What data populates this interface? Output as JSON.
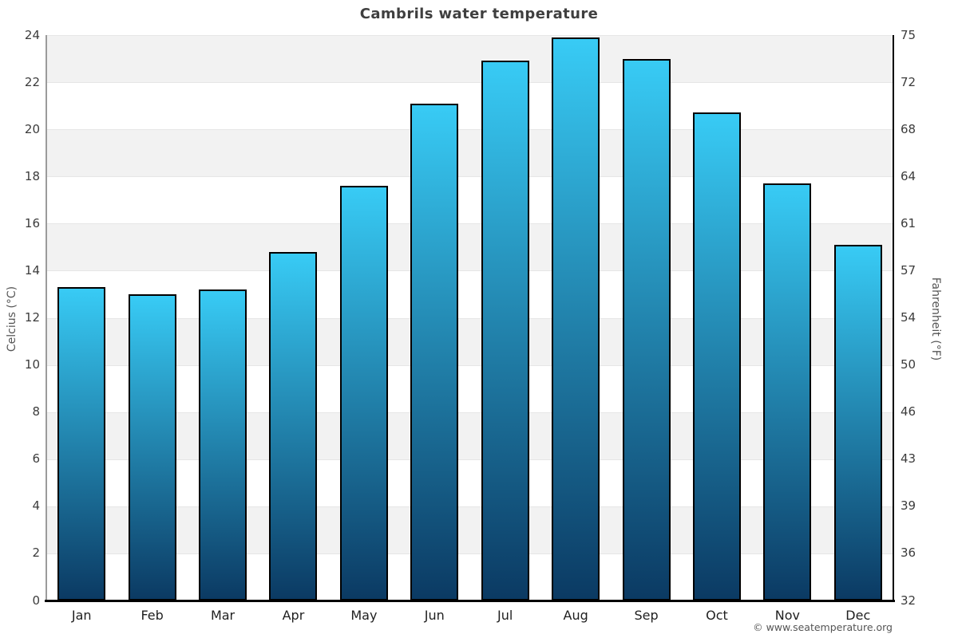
{
  "title": "Cambrils water temperature",
  "copyright": "© www.seatemperature.org",
  "chart_data": {
    "type": "bar",
    "title": "Cambrils water temperature",
    "categories": [
      "Jan",
      "Feb",
      "Mar",
      "Apr",
      "May",
      "Jun",
      "Jul",
      "Aug",
      "Sep",
      "Oct",
      "Nov",
      "Dec"
    ],
    "values_celsius": [
      13.3,
      13.0,
      13.2,
      14.8,
      17.6,
      21.1,
      22.9,
      23.9,
      23.0,
      20.7,
      17.7,
      15.1
    ],
    "xlabel": "",
    "ylabel_left": "Celcius (°C)",
    "ylabel_right": "Fahrenheit (°F)",
    "ylim_celsius": [
      0,
      24
    ],
    "yticks_celsius": [
      24,
      22,
      20,
      18,
      16,
      14,
      12,
      10,
      8,
      6,
      4,
      2,
      0
    ],
    "yticks_fahrenheit": [
      75,
      72,
      68,
      64,
      61,
      57,
      54,
      50,
      46,
      43,
      39,
      36,
      32
    ],
    "legend": "none",
    "grid": "alternating horizontal bands every 2°C",
    "colors": {
      "bar_gradient_top": "#38cbf5",
      "bar_gradient_bottom": "#0b3a63",
      "bar_border": "#000000",
      "band_gray": "#f2f2f2",
      "band_white": "#ffffff",
      "gridline": "#e6e6e6",
      "title_text": "#3f3f3f",
      "axis_text": "#3c3c3c"
    }
  }
}
